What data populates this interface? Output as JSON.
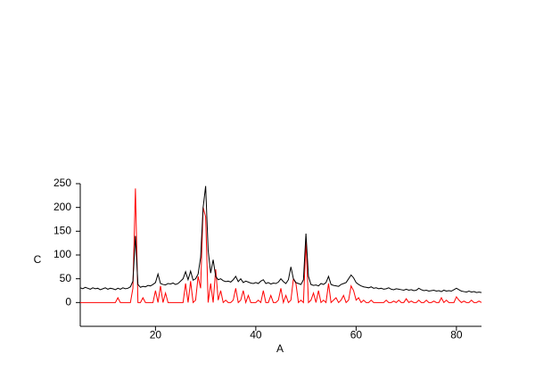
{
  "chart_data": {
    "type": "line",
    "x_label": "A",
    "y_label": "C",
    "xlim": [
      5,
      85
    ],
    "xticks": [
      20,
      40,
      60,
      80
    ],
    "ylim": [
      -50,
      250
    ],
    "yticks": [
      0,
      50,
      100,
      150,
      200,
      250
    ],
    "x": [
      5,
      5.5,
      6,
      6.5,
      7,
      7.5,
      8,
      8.5,
      9,
      9.5,
      10,
      10.5,
      11,
      11.5,
      12,
      12.5,
      13,
      13.5,
      14,
      14.5,
      15,
      15.5,
      16,
      16.5,
      17,
      17.5,
      18,
      18.5,
      19,
      19.5,
      20,
      20.5,
      21,
      21.5,
      22,
      22.5,
      23,
      23.5,
      24,
      24.5,
      25,
      25.5,
      26,
      26.5,
      27,
      27.5,
      28,
      28.5,
      29,
      29.5,
      30,
      30.5,
      31,
      31.5,
      32,
      32.5,
      33,
      33.5,
      34,
      34.5,
      35,
      35.5,
      36,
      36.5,
      37,
      37.5,
      38,
      38.5,
      39,
      39.5,
      40,
      40.5,
      41,
      41.5,
      42,
      42.5,
      43,
      43.5,
      44,
      44.5,
      45,
      45.5,
      46,
      46.5,
      47,
      47.5,
      48,
      48.5,
      49,
      49.5,
      50,
      50.5,
      51,
      51.5,
      52,
      52.5,
      53,
      53.5,
      54,
      54.5,
      55,
      55.5,
      56,
      56.5,
      57,
      57.5,
      58,
      58.5,
      59,
      59.5,
      60,
      60.5,
      61,
      61.5,
      62,
      62.5,
      63,
      63.5,
      64,
      64.5,
      65,
      65.5,
      66,
      66.5,
      67,
      67.5,
      68,
      68.5,
      69,
      69.5,
      70,
      70.5,
      71,
      71.5,
      72,
      72.5,
      73,
      73.5,
      74,
      74.5,
      75,
      75.5,
      76,
      76.5,
      77,
      77.5,
      78,
      78.5,
      79,
      79.5,
      80,
      80.5,
      81,
      81.5,
      82,
      82.5,
      83,
      83.5,
      84,
      84.5,
      85
    ],
    "series": [
      {
        "color": "#000000",
        "values": [
          31,
          29,
          32,
          30,
          28,
          31,
          29,
          30,
          27,
          29,
          31,
          28,
          30,
          29,
          27,
          30,
          28,
          31,
          29,
          30,
          33,
          45,
          140,
          38,
          32,
          34,
          33,
          36,
          35,
          38,
          42,
          60,
          40,
          38,
          37,
          40,
          39,
          41,
          38,
          40,
          45,
          50,
          65,
          48,
          66,
          47,
          50,
          60,
          95,
          200,
          245,
          110,
          62,
          90,
          55,
          48,
          50,
          46,
          44,
          45,
          43,
          48,
          55,
          44,
          50,
          42,
          45,
          43,
          41,
          40,
          42,
          40,
          45,
          48,
          40,
          42,
          39,
          41,
          40,
          43,
          50,
          44,
          40,
          48,
          75,
          50,
          42,
          40,
          38,
          48,
          145,
          55,
          38,
          36,
          37,
          35,
          40,
          38,
          42,
          55,
          38,
          36,
          35,
          34,
          38,
          40,
          42,
          50,
          58,
          52,
          42,
          38,
          35,
          33,
          32,
          31,
          33,
          30,
          31,
          29,
          30,
          28,
          29,
          31,
          28,
          27,
          29,
          28,
          27,
          26,
          28,
          26,
          27,
          25,
          26,
          30,
          27,
          25,
          26,
          24,
          25,
          26,
          24,
          25,
          23,
          26,
          24,
          25,
          24,
          27,
          30,
          27,
          24,
          23,
          22,
          24,
          22,
          23,
          21,
          22,
          21
        ]
      },
      {
        "color": "#ff0000",
        "values": [
          0,
          0,
          0,
          0,
          0,
          0,
          0,
          0,
          0,
          0,
          0,
          0,
          0,
          0,
          0,
          10,
          0,
          0,
          0,
          0,
          0,
          30,
          240,
          0,
          0,
          10,
          0,
          0,
          0,
          0,
          25,
          0,
          35,
          0,
          20,
          0,
          0,
          0,
          0,
          0,
          0,
          0,
          40,
          0,
          45,
          0,
          5,
          55,
          30,
          200,
          180,
          0,
          40,
          0,
          70,
          5,
          25,
          0,
          5,
          0,
          0,
          5,
          30,
          0,
          5,
          25,
          0,
          15,
          0,
          0,
          0,
          5,
          0,
          25,
          0,
          0,
          15,
          0,
          0,
          5,
          30,
          0,
          15,
          0,
          5,
          50,
          40,
          0,
          5,
          0,
          130,
          0,
          5,
          20,
          0,
          25,
          0,
          5,
          0,
          40,
          0,
          5,
          10,
          0,
          5,
          15,
          0,
          5,
          35,
          25,
          5,
          10,
          0,
          5,
          0,
          0,
          5,
          0,
          0,
          0,
          0,
          0,
          5,
          0,
          0,
          3,
          0,
          5,
          0,
          0,
          8,
          0,
          3,
          0,
          0,
          5,
          0,
          0,
          5,
          0,
          0,
          3,
          0,
          0,
          10,
          0,
          5,
          0,
          0,
          0,
          12,
          5,
          0,
          3,
          0,
          0,
          5,
          0,
          0,
          3,
          0
        ]
      }
    ]
  }
}
